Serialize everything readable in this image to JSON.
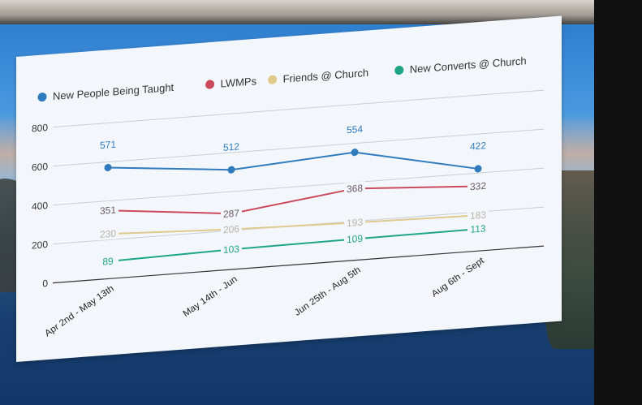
{
  "chart_data": {
    "type": "line",
    "categories": [
      "Apr 2nd - May 13th",
      "May 14th - Jun",
      "Jun 25th - Aug 5th",
      "Aug 6th - Sept"
    ],
    "ylim": [
      0,
      800
    ],
    "yticks": [
      0,
      200,
      400,
      600,
      800
    ],
    "ytick_labels": [
      "0",
      "200",
      "400",
      "600",
      "800"
    ],
    "grid": true,
    "legend_position": "top",
    "series": [
      {
        "name": "New People Being Taught",
        "color": "#2f7bbd",
        "values": [
          571,
          512,
          554,
          422
        ],
        "labels": [
          "571",
          "512",
          "554",
          "422"
        ],
        "marker": true
      },
      {
        "name": "LWMPs",
        "color": "#c94a5b",
        "values": [
          351,
          287,
          368,
          332
        ],
        "labels": [
          "351",
          "287",
          "368",
          "332"
        ],
        "marker": false
      },
      {
        "name": "Friends @ Church",
        "color": "#e0c98c",
        "values": [
          230,
          206,
          193,
          183
        ],
        "labels": [
          "230",
          "206",
          "193",
          "183"
        ],
        "marker": false
      },
      {
        "name": "New Converts @ Church",
        "color": "#1fa488",
        "values": [
          89,
          103,
          109,
          113
        ],
        "labels": [
          "89",
          "103",
          "109",
          "113"
        ],
        "marker": false
      }
    ]
  }
}
